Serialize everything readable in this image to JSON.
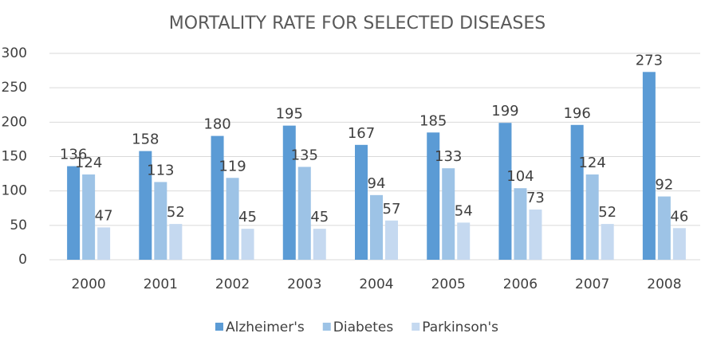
{
  "chart_data": {
    "type": "bar",
    "title": "MORTALITY RATE FOR SELECTED DISEASES",
    "categories": [
      "2000",
      "2001",
      "2002",
      "2003",
      "2004",
      "2005",
      "2006",
      "2007",
      "2008"
    ],
    "series": [
      {
        "name": "Alzheimer's",
        "color": "#5b9bd5",
        "values": [
          136,
          158,
          180,
          195,
          167,
          185,
          199,
          196,
          273
        ]
      },
      {
        "name": "Diabetes",
        "color": "#9dc3e6",
        "values": [
          124,
          113,
          119,
          135,
          94,
          133,
          104,
          124,
          92
        ]
      },
      {
        "name": "Parkinson's",
        "color": "#c5d9f0",
        "values": [
          47,
          52,
          45,
          45,
          57,
          54,
          73,
          52,
          46
        ]
      }
    ],
    "ylim": [
      0,
      300
    ],
    "yticks": [
      0,
      50,
      100,
      150,
      200,
      250,
      300
    ],
    "grid": true,
    "legend": "bottom"
  }
}
